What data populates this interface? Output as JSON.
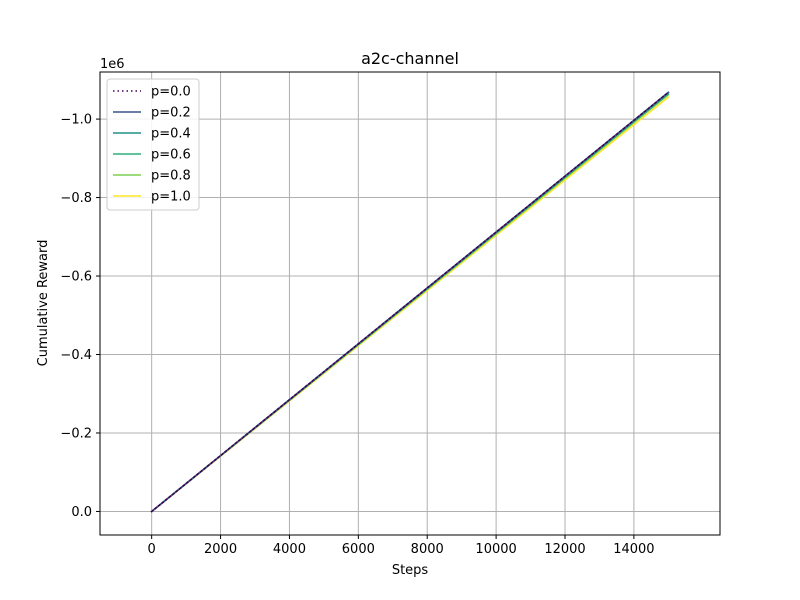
{
  "chart_data": {
    "type": "line",
    "title": "a2c-channel",
    "xlabel": "Steps",
    "ylabel": "Cumulative Reward",
    "y_scale_label": "1e6",
    "xlim": [
      -1500,
      16500
    ],
    "ylim": [
      0.06,
      -1.12
    ],
    "y_inverted": true,
    "grid": true,
    "legend_position": "top-left",
    "x_ticks": [
      0,
      2000,
      4000,
      6000,
      8000,
      10000,
      12000,
      14000
    ],
    "x_tick_labels": [
      "0",
      "2000",
      "4000",
      "6000",
      "8000",
      "10000",
      "12000",
      "14000"
    ],
    "y_ticks": [
      0.0,
      -0.2,
      -0.4,
      -0.6,
      -0.8,
      -1.0
    ],
    "y_tick_labels": [
      "0.0",
      "−0.2",
      "−0.4",
      "−0.6",
      "−0.8",
      "−1.0"
    ],
    "x": [
      0,
      15000
    ],
    "series": [
      {
        "name": "p=0.0",
        "color": "#440154",
        "dash": "dotted",
        "values": [
          0.0,
          -1.068
        ]
      },
      {
        "name": "p=0.2",
        "color": "#3b528b",
        "dash": "solid",
        "values": [
          0.0,
          -1.068
        ]
      },
      {
        "name": "p=0.4",
        "color": "#21918c",
        "dash": "solid",
        "values": [
          0.0,
          -1.068
        ]
      },
      {
        "name": "p=0.6",
        "color": "#2ab07f",
        "dash": "solid",
        "values": [
          0.0,
          -1.064
        ]
      },
      {
        "name": "p=0.8",
        "color": "#7ad151",
        "dash": "solid",
        "values": [
          0.0,
          -1.062
        ]
      },
      {
        "name": "p=1.0",
        "color": "#fde725",
        "dash": "solid",
        "values": [
          0.0,
          -1.056
        ]
      }
    ]
  }
}
